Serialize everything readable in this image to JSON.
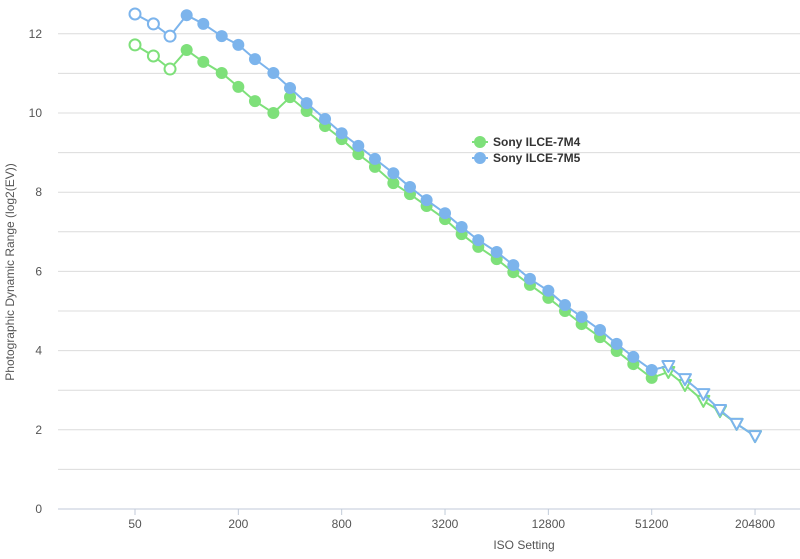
{
  "chart_data": {
    "type": "line",
    "title": "",
    "xlabel": "ISO Setting",
    "ylabel": "Photographic Dynamic Range (log2(EV))",
    "ylim": [
      0,
      12.5
    ],
    "y_ticks": [
      0,
      2,
      4,
      6,
      8,
      10,
      12
    ],
    "y_gridlines_every": 1,
    "x_scale": "log2",
    "x_tick_labels": [
      "50",
      "200",
      "800",
      "3200",
      "12800",
      "51200",
      "204800"
    ],
    "grid": true,
    "legend_position": "inside-right-upper",
    "legend": [
      "Sony ILCE-7M4",
      "Sony ILCE-7M5"
    ],
    "x": [
      50,
      64,
      80,
      100,
      125,
      160,
      200,
      250,
      320,
      400,
      500,
      640,
      800,
      1000,
      1250,
      1600,
      2000,
      2500,
      3200,
      4000,
      5000,
      6400,
      8000,
      10000,
      12800,
      16000,
      20000,
      25600,
      32000,
      40000,
      51200,
      64000,
      80000,
      102400,
      128000,
      160000,
      204800
    ],
    "series": [
      {
        "name": "Sony ILCE-7M4",
        "color": "#7ee07a",
        "values": [
          11.72,
          11.44,
          11.11,
          11.59,
          11.29,
          11.01,
          10.66,
          10.3,
          10.0,
          10.4,
          10.05,
          9.67,
          9.34,
          8.96,
          8.64,
          8.23,
          7.95,
          7.65,
          7.32,
          6.94,
          6.62,
          6.31,
          5.98,
          5.66,
          5.33,
          5.0,
          4.67,
          4.34,
          3.99,
          3.66,
          3.31,
          3.46,
          3.13,
          2.73,
          2.47,
          2.15,
          1.84
        ],
        "marker_styles": [
          "open-circle",
          "open-circle",
          "open-circle",
          "filled-circle",
          "filled-circle",
          "filled-circle",
          "filled-circle",
          "filled-circle",
          "filled-circle",
          "filled-circle",
          "filled-circle",
          "filled-circle",
          "filled-circle",
          "filled-circle",
          "filled-circle",
          "filled-circle",
          "filled-circle",
          "filled-circle",
          "filled-circle",
          "filled-circle",
          "filled-circle",
          "filled-circle",
          "filled-circle",
          "filled-circle",
          "filled-circle",
          "filled-circle",
          "filled-circle",
          "filled-circle",
          "filled-circle",
          "filled-circle",
          "filled-circle",
          "open-triangle-down",
          "open-triangle-down",
          "open-triangle-down",
          "open-triangle-down",
          "open-triangle-down",
          "open-triangle-down"
        ]
      },
      {
        "name": "Sony ILCE-7M5",
        "color": "#7cb4ec",
        "values": [
          12.5,
          12.25,
          11.94,
          12.47,
          12.25,
          11.94,
          11.72,
          11.36,
          11.01,
          10.63,
          10.25,
          9.85,
          9.49,
          9.17,
          8.84,
          8.48,
          8.13,
          7.8,
          7.47,
          7.12,
          6.79,
          6.49,
          6.16,
          5.81,
          5.51,
          5.15,
          4.85,
          4.52,
          4.17,
          3.84,
          3.51,
          3.61,
          3.28,
          2.9,
          2.5,
          2.15,
          1.84
        ],
        "marker_styles": [
          "open-circle",
          "open-circle",
          "open-circle",
          "filled-circle",
          "filled-circle",
          "filled-circle",
          "filled-circle",
          "filled-circle",
          "filled-circle",
          "filled-circle",
          "filled-circle",
          "filled-circle",
          "filled-circle",
          "filled-circle",
          "filled-circle",
          "filled-circle",
          "filled-circle",
          "filled-circle",
          "filled-circle",
          "filled-circle",
          "filled-circle",
          "filled-circle",
          "filled-circle",
          "filled-circle",
          "filled-circle",
          "filled-circle",
          "filled-circle",
          "filled-circle",
          "filled-circle",
          "filled-circle",
          "filled-circle",
          "open-triangle-down",
          "open-triangle-down",
          "open-triangle-down",
          "open-triangle-down",
          "open-triangle-down",
          "open-triangle-down"
        ]
      }
    ]
  },
  "axes": {
    "x_title": "ISO Setting",
    "y_title": "Photographic Dynamic Range (log2(EV))"
  },
  "legend": {
    "items": [
      {
        "label": "Sony ILCE-7M4",
        "color": "#7ee07a"
      },
      {
        "label": "Sony ILCE-7M5",
        "color": "#7cb4ec"
      }
    ]
  }
}
